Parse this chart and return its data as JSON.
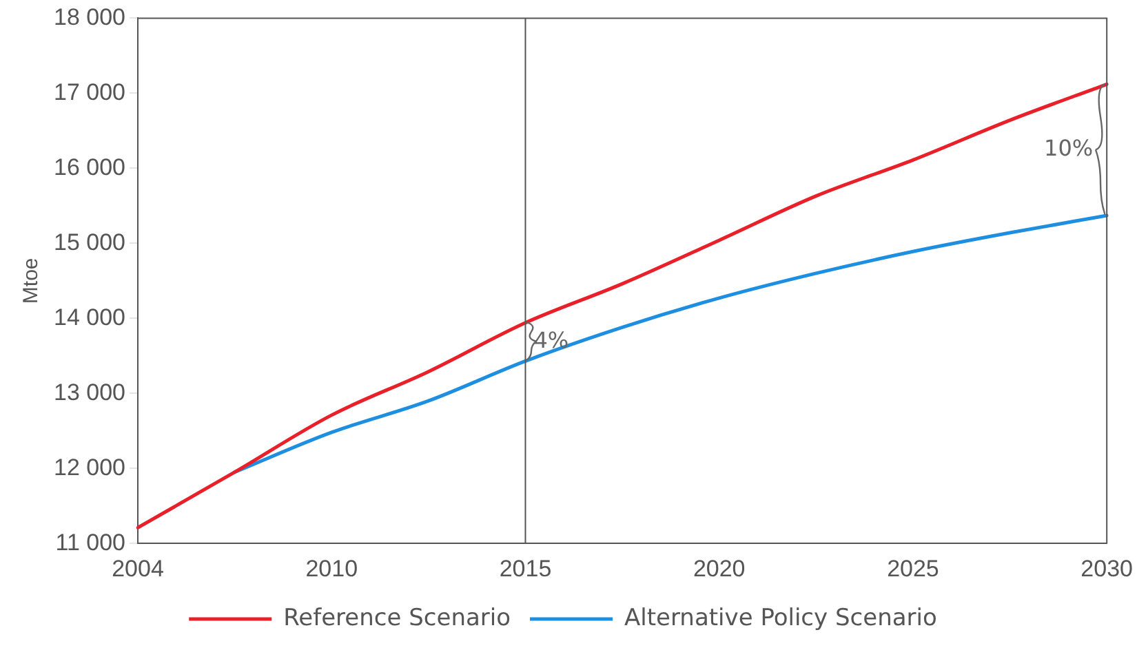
{
  "chart_data": {
    "type": "line",
    "categories": [
      "2004",
      null,
      "2010",
      null,
      "2015",
      null,
      "2020",
      null,
      "2025",
      null,
      "2030"
    ],
    "ylabel": "Mtoe",
    "ylim": [
      11000,
      18000
    ],
    "yticks": [
      {
        "value": 11000,
        "label": "11 000"
      },
      {
        "value": 12000,
        "label": "12 000"
      },
      {
        "value": 13000,
        "label": "13 000"
      },
      {
        "value": 14000,
        "label": "14 000"
      },
      {
        "value": 15000,
        "label": "15 000"
      },
      {
        "value": 16000,
        "label": "16 000"
      },
      {
        "value": 17000,
        "label": "17 000"
      },
      {
        "value": 18000,
        "label": "18 000"
      }
    ],
    "series": [
      {
        "name": "Reference Scenario",
        "color": "#e8202a",
        "values": [
          11210,
          11950,
          12710,
          13290,
          13940,
          14460,
          15040,
          15630,
          16110,
          16640,
          17120
        ]
      },
      {
        "name": "Alternative Policy Scenario",
        "color": "#1e8fe0",
        "values": [
          null,
          11950,
          12480,
          12900,
          13430,
          13880,
          14270,
          14600,
          14890,
          15140,
          15370
        ]
      }
    ],
    "ref_lines": [
      {
        "axis": "x",
        "value": "2015",
        "color": "#555555"
      }
    ],
    "annotations": [
      {
        "text": "4%",
        "x": "2015",
        "y": 13940
      },
      {
        "text": "10%",
        "x": "2030",
        "y": 17120
      }
    ],
    "legend": "bottom",
    "grid": false,
    "marker": "none",
    "line_style": "solid"
  }
}
